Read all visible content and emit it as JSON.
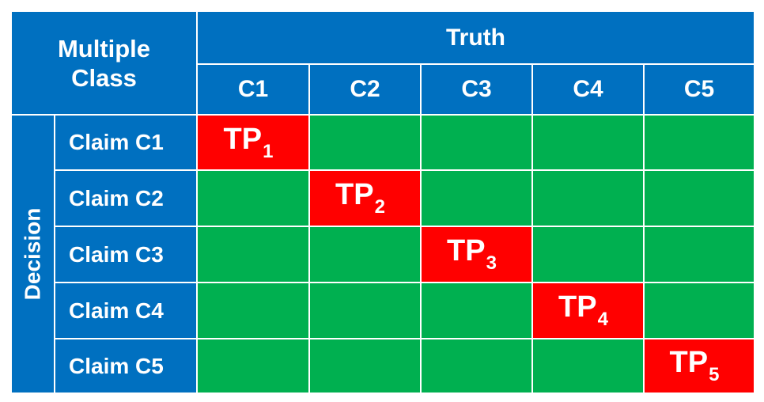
{
  "corner_label_line1": "Multiple",
  "corner_label_line2": "Class",
  "truth_label": "Truth",
  "decision_label": "Decision",
  "columns": [
    "C1",
    "C2",
    "C3",
    "C4",
    "C5"
  ],
  "rows": [
    "Claim C1",
    "Claim C2",
    "Claim C3",
    "Claim C4",
    "Claim C5"
  ],
  "cells": [
    [
      "TP|1",
      "",
      "",
      "",
      ""
    ],
    [
      "",
      "TP|2",
      "",
      "",
      ""
    ],
    [
      "",
      "",
      "TP|3",
      "",
      ""
    ],
    [
      "",
      "",
      "",
      "TP|4",
      ""
    ],
    [
      "",
      "",
      "",
      "",
      "TP|5"
    ]
  ],
  "colors": {
    "header_blue": "#0070C0",
    "off_diagonal_green": "#00B050",
    "diagonal_red": "#FF0000",
    "grid_line": "#ffffff"
  }
}
